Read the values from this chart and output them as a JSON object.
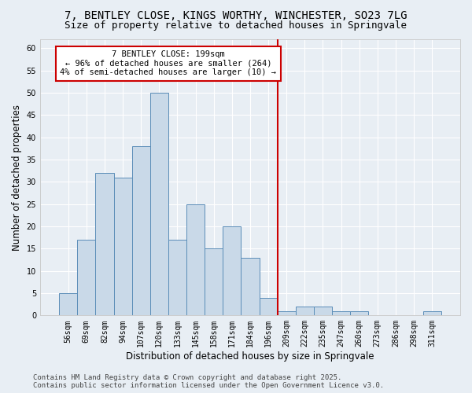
{
  "title_line1": "7, BENTLEY CLOSE, KINGS WORTHY, WINCHESTER, SO23 7LG",
  "title_line2": "Size of property relative to detached houses in Springvale",
  "xlabel": "Distribution of detached houses by size in Springvale",
  "ylabel": "Number of detached properties",
  "categories": [
    "56sqm",
    "69sqm",
    "82sqm",
    "94sqm",
    "107sqm",
    "120sqm",
    "133sqm",
    "145sqm",
    "158sqm",
    "171sqm",
    "184sqm",
    "196sqm",
    "209sqm",
    "222sqm",
    "235sqm",
    "247sqm",
    "260sqm",
    "273sqm",
    "286sqm",
    "298sqm",
    "311sqm"
  ],
  "values": [
    5,
    17,
    32,
    31,
    38,
    50,
    17,
    25,
    15,
    20,
    13,
    4,
    1,
    2,
    2,
    1,
    1,
    0,
    0,
    0,
    1
  ],
  "bar_color": "#c9d9e8",
  "bar_edge_color": "#5b8db8",
  "background_color": "#e8eef4",
  "grid_color": "#ffffff",
  "red_line_index": 11.5,
  "annotation_text": "7 BENTLEY CLOSE: 199sqm\n← 96% of detached houses are smaller (264)\n4% of semi-detached houses are larger (10) →",
  "annotation_box_facecolor": "#ffffff",
  "annotation_box_edgecolor": "#cc0000",
  "red_line_color": "#cc0000",
  "ylim": [
    0,
    62
  ],
  "yticks": [
    0,
    5,
    10,
    15,
    20,
    25,
    30,
    35,
    40,
    45,
    50,
    55,
    60
  ],
  "footer_line1": "Contains HM Land Registry data © Crown copyright and database right 2025.",
  "footer_line2": "Contains public sector information licensed under the Open Government Licence v3.0.",
  "title_fontsize": 10,
  "subtitle_fontsize": 9,
  "axis_label_fontsize": 8.5,
  "tick_fontsize": 7,
  "annotation_fontsize": 7.5,
  "footer_fontsize": 6.5
}
